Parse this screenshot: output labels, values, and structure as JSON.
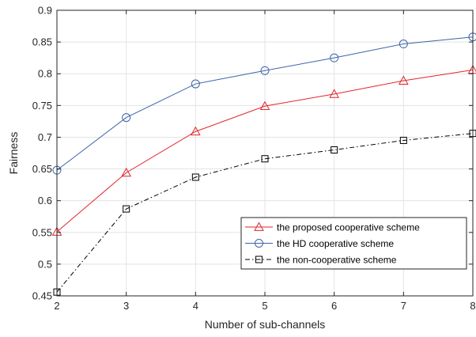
{
  "chart_data": {
    "type": "line",
    "title": "",
    "xlabel": "Number of sub-channels",
    "ylabel": "Fairness",
    "x": [
      2,
      3,
      4,
      5,
      6,
      7,
      8
    ],
    "xlim": [
      2,
      8
    ],
    "ylim": [
      0.45,
      0.9
    ],
    "xticks": [
      "2",
      "3",
      "4",
      "5",
      "6",
      "7",
      "8"
    ],
    "yticks": [
      "0.45",
      "0.5",
      "0.55",
      "0.6",
      "0.65",
      "0.7",
      "0.75",
      "0.8",
      "0.85",
      "0.9"
    ],
    "grid": true,
    "legend_position": "lower-right",
    "series": [
      {
        "name": "the proposed cooperative scheme",
        "values": [
          0.551,
          0.644,
          0.709,
          0.749,
          0.768,
          0.789,
          0.806
        ],
        "color": "#e0262b",
        "marker": "triangle",
        "linestyle": "solid"
      },
      {
        "name": "the HD cooperative scheme",
        "values": [
          0.648,
          0.731,
          0.784,
          0.805,
          0.825,
          0.847,
          0.858
        ],
        "color": "#3c64a8",
        "marker": "circle",
        "linestyle": "solid"
      },
      {
        "name": "the non-cooperative scheme",
        "values": [
          0.456,
          0.587,
          0.637,
          0.666,
          0.68,
          0.695,
          0.706
        ],
        "color": "#000000",
        "marker": "square",
        "linestyle": "dashdot"
      }
    ]
  }
}
